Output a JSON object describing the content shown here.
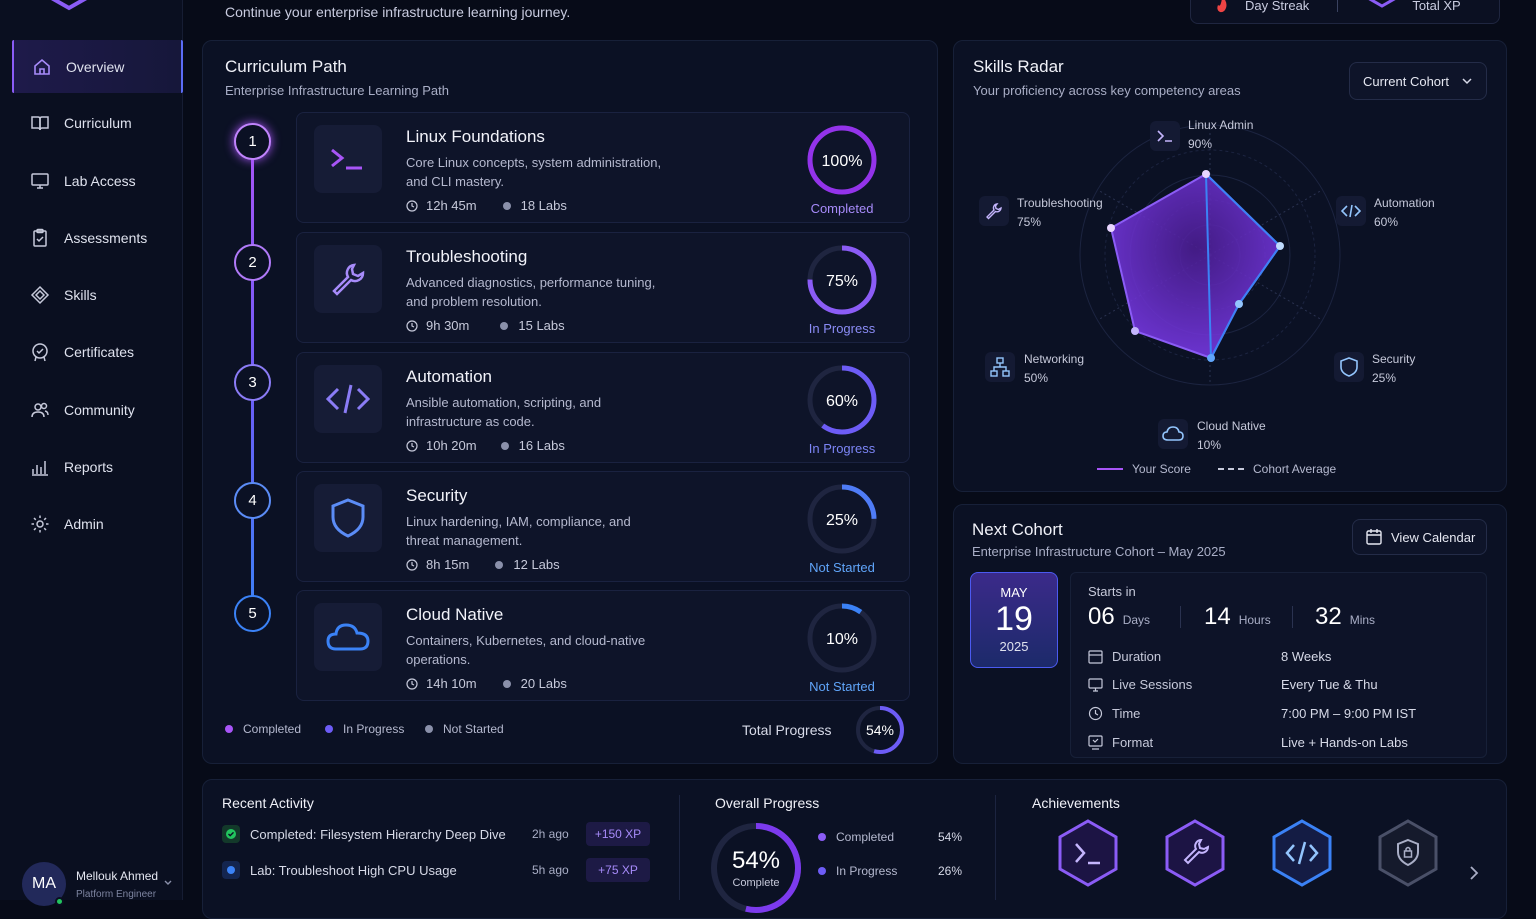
{
  "header": {
    "subtitle": "Continue your enterprise infrastructure learning journey.",
    "stats": [
      {
        "label": "Day Streak"
      },
      {
        "label": "Total XP"
      }
    ]
  },
  "sidebar": {
    "items": [
      {
        "label": "Overview",
        "icon": "home-icon"
      },
      {
        "label": "Curriculum",
        "icon": "book-icon"
      },
      {
        "label": "Lab Access",
        "icon": "monitor-icon"
      },
      {
        "label": "Assessments",
        "icon": "clipboard-icon"
      },
      {
        "label": "Skills",
        "icon": "diamond-icon"
      },
      {
        "label": "Certificates",
        "icon": "badge-check-icon"
      },
      {
        "label": "Community",
        "icon": "users-icon"
      },
      {
        "label": "Reports",
        "icon": "bar-chart-icon"
      },
      {
        "label": "Admin",
        "icon": "gear-icon"
      }
    ],
    "user": {
      "initials": "MA",
      "name": "Mellouk Ahmed",
      "role": "Platform Engineer"
    }
  },
  "curriculum": {
    "title": "Curriculum Path",
    "subtitle": "Enterprise Infrastructure Learning Path",
    "courses": [
      {
        "step": "1",
        "title": "Linux Foundations",
        "desc": "Core Linux concepts, system administration, and CLI mastery.",
        "time": "12h 45m",
        "labs": "18 Labs",
        "pct": "100%",
        "status": "Completed",
        "icon": "terminal-icon"
      },
      {
        "step": "2",
        "title": "Troubleshooting",
        "desc": "Advanced diagnostics, performance tuning, and problem resolution.",
        "time": "9h 30m",
        "labs": "15 Labs",
        "pct": "75%",
        "status": "In Progress",
        "icon": "wrench-icon"
      },
      {
        "step": "3",
        "title": "Automation",
        "desc": "Ansible automation, scripting, and infrastructure as code.",
        "time": "10h 20m",
        "labs": "16 Labs",
        "pct": "60%",
        "status": "In Progress",
        "icon": "code-icon"
      },
      {
        "step": "4",
        "title": "Security",
        "desc": "Linux hardening, IAM, compliance, and threat management.",
        "time": "8h 15m",
        "labs": "12 Labs",
        "pct": "25%",
        "status": "Not Started",
        "icon": "shield-icon"
      },
      {
        "step": "5",
        "title": "Cloud Native",
        "desc": "Containers, Kubernetes, and cloud-native operations.",
        "time": "14h 10m",
        "labs": "20 Labs",
        "pct": "10%",
        "status": "Not Started",
        "icon": "cloud-icon"
      }
    ],
    "legend": [
      "Completed",
      "In Progress",
      "Not Started"
    ],
    "total_label": "Total Progress",
    "total_pct": "54%",
    "colors": {
      "completed": "#8b5cf6",
      "in_progress": "#6d5cf6",
      "not_started": "#3b82f6"
    }
  },
  "radar": {
    "title": "Skills Radar",
    "subtitle": "Your proficiency across key competency areas",
    "dropdown": "Current Cohort",
    "skills": [
      {
        "name": "Linux Admin",
        "value": "90%"
      },
      {
        "name": "Automation",
        "value": "60%"
      },
      {
        "name": "Security",
        "value": "25%"
      },
      {
        "name": "Cloud Native",
        "value": "10%"
      },
      {
        "name": "Networking",
        "value": "50%"
      },
      {
        "name": "Troubleshooting",
        "value": "75%"
      }
    ],
    "legend_score": "Your Score",
    "legend_avg": "Cohort Average"
  },
  "cohort": {
    "title": "Next Cohort",
    "subtitle": "Enterprise Infrastructure Cohort – May 2025",
    "button": "View Calendar",
    "month": "MAY",
    "day": "19",
    "year": "2025",
    "starts_in": "Starts in",
    "countdown": [
      {
        "num": "06",
        "unit": "Days"
      },
      {
        "num": "14",
        "unit": "Hours"
      },
      {
        "num": "32",
        "unit": "Mins"
      }
    ],
    "details": [
      {
        "label": "Duration",
        "value": "8 Weeks"
      },
      {
        "label": "Live Sessions",
        "value": "Every Tue & Thu"
      },
      {
        "label": "Time",
        "value": "7:00 PM – 9:00 PM IST"
      },
      {
        "label": "Format",
        "value": "Live + Hands-on Labs"
      }
    ]
  },
  "activity": {
    "title": "Recent Activity",
    "items": [
      {
        "text": "Completed: Filesystem Hierarchy Deep Dive",
        "ago": "2h ago",
        "xp": "+150 XP"
      },
      {
        "text": "Lab: Troubleshoot High CPU Usage",
        "ago": "5h ago",
        "xp": "+75 XP"
      }
    ]
  },
  "overall": {
    "title": "Overall Progress",
    "pct": "54%",
    "label": "Complete",
    "rows": [
      {
        "label": "Completed",
        "value": "54%"
      },
      {
        "label": "In Progress",
        "value": "26%"
      }
    ]
  },
  "achievements": {
    "title": "Achievements"
  }
}
